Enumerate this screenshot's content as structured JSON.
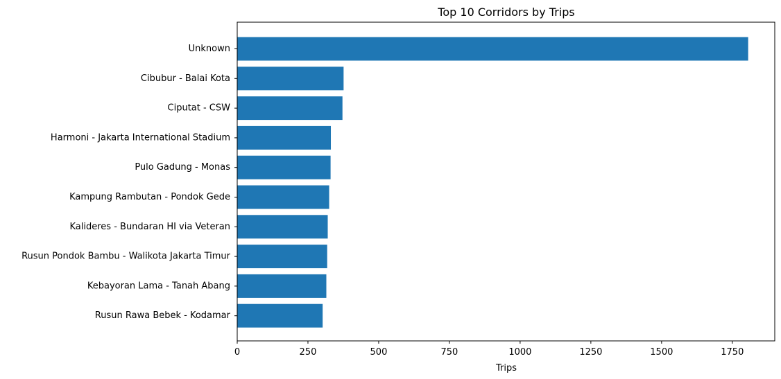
{
  "chart_data": {
    "type": "bar",
    "orientation": "horizontal",
    "title": "Top 10 Corridors by Trips",
    "xlabel": "Trips",
    "ylabel": "",
    "xlim": [
      0,
      1900
    ],
    "xticks": [
      0,
      250,
      500,
      750,
      1000,
      1250,
      1500,
      1750
    ],
    "categories": [
      "Unknown",
      "Cibubur - Balai Kota",
      "Ciputat - CSW",
      "Harmoni - Jakarta International Stadium",
      "Pulo Gadung - Monas",
      "Kampung Rambutan - Pondok Gede",
      "Kalideres - Bundaran HI via Veteran",
      "Rusun Pondok Bambu - Walikota Jakarta Timur",
      "Kebayoran Lama - Tanah Abang",
      "Rusun Rawa Bebek - Kodamar"
    ],
    "values": [
      1806,
      376,
      372,
      331,
      330,
      325,
      320,
      318,
      315,
      302
    ],
    "bar_color": "#1f77b4",
    "grid": false,
    "legend": "none"
  }
}
